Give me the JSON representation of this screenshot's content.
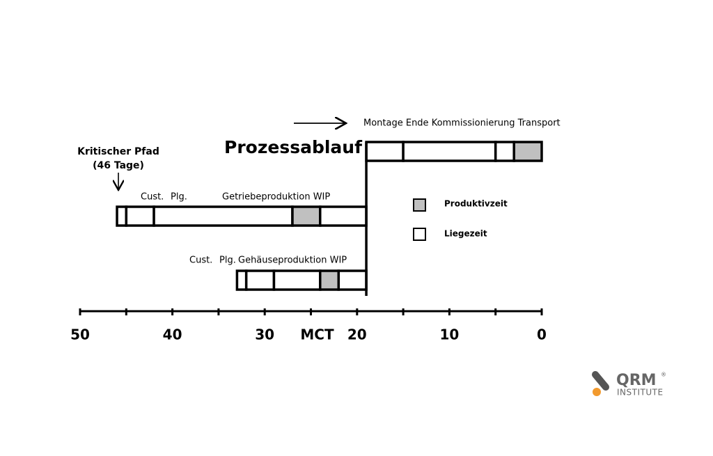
{
  "title": "Prozessablauf",
  "top_arrow_label": "Montage Ende Kommissionierung Transport",
  "critical_path": {
    "line1": "Kritischer Pfad",
    "line2": "(46 Tage)"
  },
  "legend": [
    {
      "label": "Produktivzeit",
      "color": "#c0c0c0"
    },
    {
      "label": "Liegezeit",
      "color": "#ffffff"
    }
  ],
  "axis": {
    "lim": [
      50,
      0
    ],
    "ticks": [
      50,
      45,
      40,
      35,
      30,
      25,
      20,
      15,
      10,
      5,
      0
    ],
    "tick_labels": [
      50,
      40,
      30,
      {
        "value": 25,
        "label": "MCT"
      },
      20,
      10,
      0
    ]
  },
  "rows": [
    {
      "labels": [],
      "segments": [
        {
          "from": 19,
          "to": 15,
          "productive": false
        },
        {
          "from": 15,
          "to": 5,
          "productive": false
        },
        {
          "from": 5,
          "to": 3,
          "productive": false
        },
        {
          "from": 3,
          "to": 0,
          "productive": true
        }
      ]
    },
    {
      "labels": [
        "Cust.",
        "Plg.",
        "Getriebeproduktion WIP"
      ],
      "segments": [
        {
          "from": 46,
          "to": 45,
          "productive": false
        },
        {
          "from": 45,
          "to": 42,
          "productive": false
        },
        {
          "from": 42,
          "to": 27,
          "productive": false
        },
        {
          "from": 27,
          "to": 24,
          "productive": true
        },
        {
          "from": 24,
          "to": 19,
          "productive": false
        }
      ]
    },
    {
      "labels": [
        "Cust.",
        "Plg.",
        "Gehäuseproduktion WIP"
      ],
      "segments": [
        {
          "from": 33,
          "to": 32,
          "productive": false
        },
        {
          "from": 32,
          "to": 29,
          "productive": false
        },
        {
          "from": 29,
          "to": 24,
          "productive": false
        },
        {
          "from": 24,
          "to": 22,
          "productive": true
        },
        {
          "from": 22,
          "to": 19,
          "productive": false
        }
      ]
    }
  ],
  "logo": {
    "name": "QRM",
    "mark": "®",
    "sub": "INSTITUTE"
  }
}
